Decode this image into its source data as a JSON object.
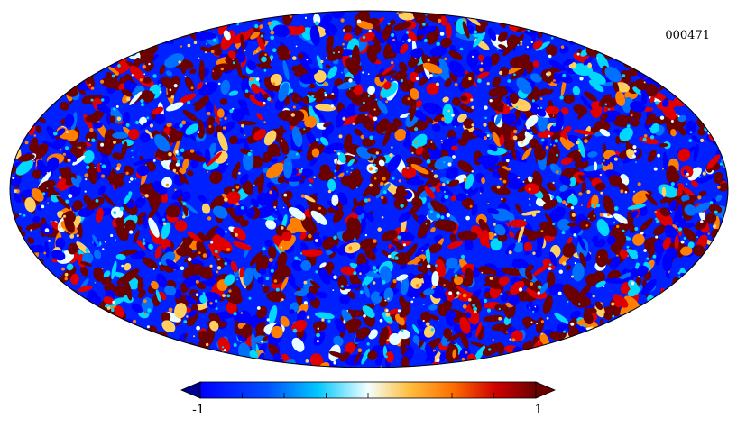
{
  "map": {
    "id_label": "000471",
    "projection": "mollweide",
    "colormap": [
      "#00008f",
      "#0000ff",
      "#0070ff",
      "#00d8ff",
      "#e8ffff",
      "#ffd060",
      "#ff8000",
      "#e00000",
      "#6b0000"
    ]
  },
  "colorbar": {
    "min_label": "-1",
    "max_label": "1",
    "min": -1,
    "max": 1,
    "extend": "both",
    "tick_count": 9
  }
}
